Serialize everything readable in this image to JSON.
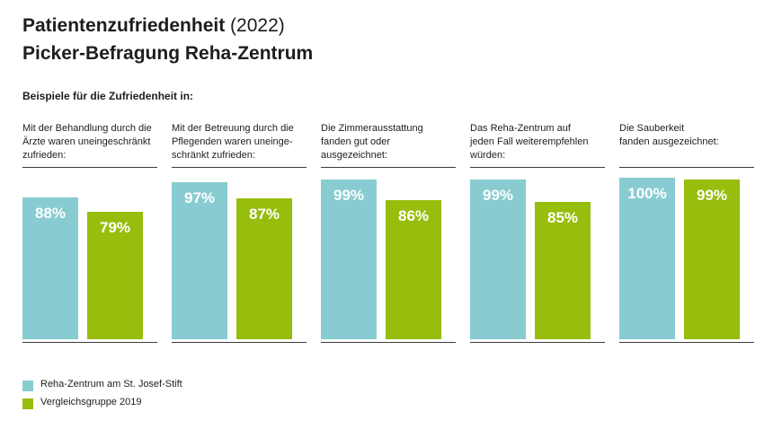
{
  "header": {
    "title": "Patientenzufriedenheit",
    "title_year": "(2022)",
    "subtitle": "Picker-Befragung Reha-Zentrum",
    "intro": "Beispiele für die Zufriedenheit in:"
  },
  "colors": {
    "reha": "#88ccd1",
    "vergleich": "#97bd0d",
    "line": "#3c3c3b"
  },
  "chart_data": {
    "type": "bar",
    "title": "Patientenzufriedenheit (2022)",
    "subtitle": "Picker-Befragung Reha-Zentrum",
    "unit": "%",
    "ylim": [
      0,
      100
    ],
    "grid": false,
    "legend_position": "bottom-left",
    "categories": [
      "Mit der Behandlung durch die Ärzte waren uneingeschränkt zufrieden:",
      "Mit der Betreuung durch die Pflegenden waren uneinge-schränkt zufrieden:",
      "Die Zimmerausstattung fanden gut oder ausgezeichnet:",
      "Das Reha-Zentrum auf jeden Fall weiterempfehlen würden:",
      "Die Sauberkeit fanden ausgezeichnet:"
    ],
    "category_lines": [
      [
        "Mit der Behandlung durch die",
        "Ärzte waren uneingeschränkt",
        "zufrieden:"
      ],
      [
        "Mit der Betreuung durch die",
        "Pflegenden waren uneinge-",
        "schränkt zufrieden:"
      ],
      [
        "Die Zimmerausstattung",
        "fanden gut oder ausgezeichnet:"
      ],
      [
        "Das Reha-Zentrum auf",
        "jeden Fall weiterempfehlen",
        "würden:"
      ],
      [
        "Die Sauberkeit",
        "fanden ausgezeichnet:"
      ]
    ],
    "series": [
      {
        "name": "Reha-Zentrum am St. Josef-Stift",
        "values": [
          88,
          97,
          99,
          99,
          100
        ],
        "labels": [
          "88%",
          "97%",
          "99%",
          "99%",
          "100%"
        ]
      },
      {
        "name": "Vergleichsgruppe 2019",
        "values": [
          79,
          87,
          86,
          85,
          99
        ],
        "labels": [
          "79%",
          "87%",
          "86%",
          "85%",
          "99%"
        ]
      }
    ]
  }
}
